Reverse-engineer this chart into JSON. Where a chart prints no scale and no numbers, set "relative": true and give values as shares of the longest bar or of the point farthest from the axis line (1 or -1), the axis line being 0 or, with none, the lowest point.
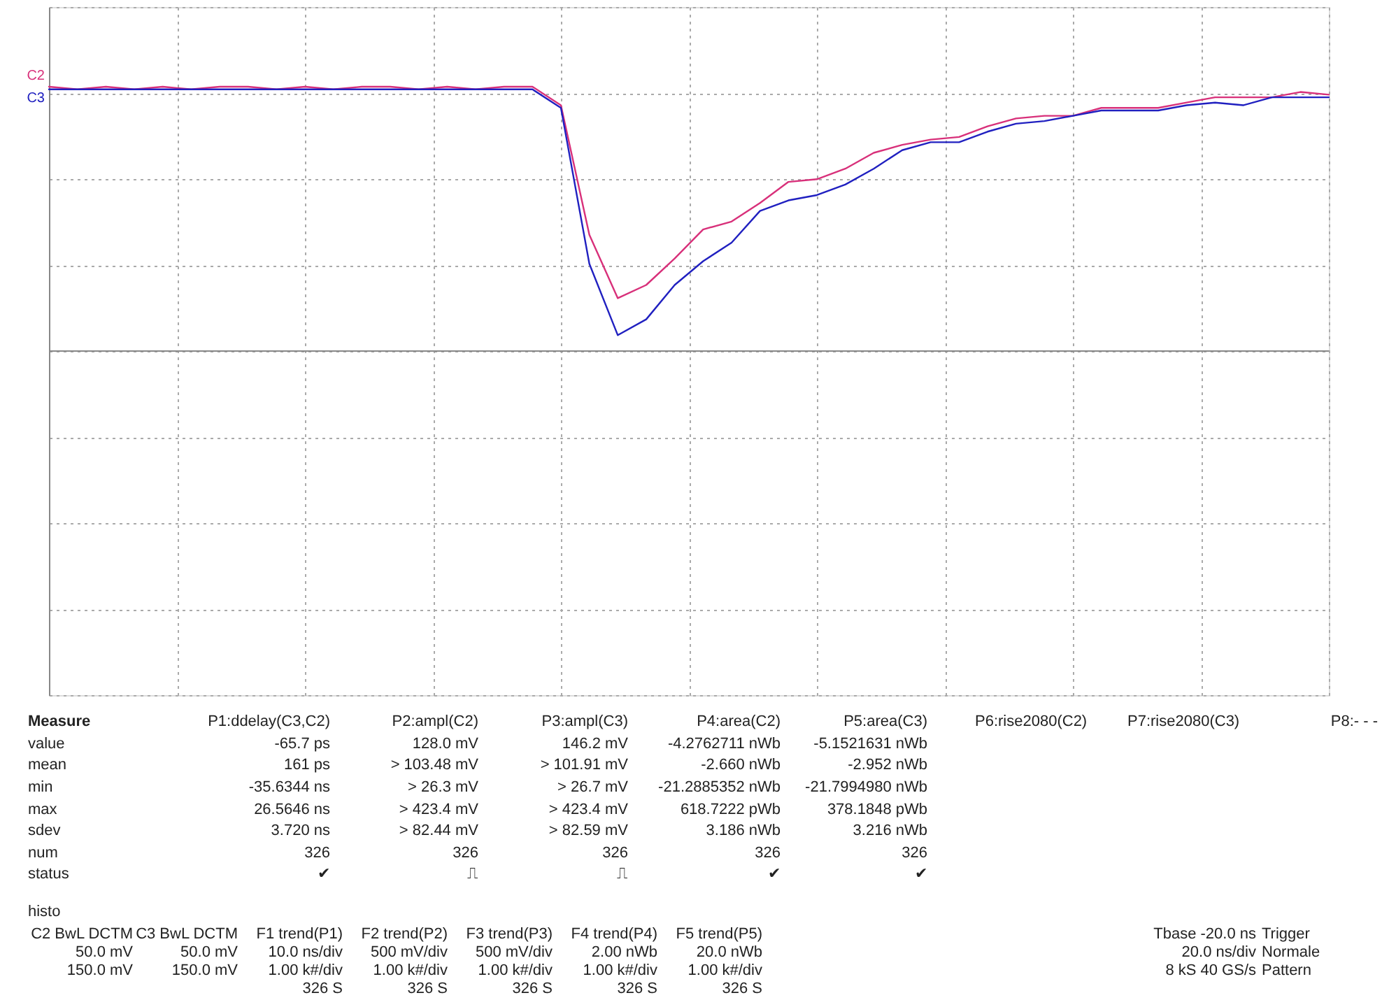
{
  "chart_data": {
    "type": "line",
    "relative": true,
    "grid": true,
    "tick_labels": false,
    "line_style": "solid",
    "marker": "none",
    "categories": [
      null,
      null,
      null,
      null,
      null,
      null,
      null,
      null,
      null,
      null,
      null,
      null,
      null,
      null,
      null,
      null,
      null,
      null,
      null,
      null,
      null,
      null,
      null,
      null,
      null,
      null,
      null,
      null,
      null,
      null,
      null,
      null,
      null,
      null,
      null,
      null,
      null,
      null,
      null,
      null,
      null,
      null,
      null,
      null,
      null,
      null
    ],
    "series": [
      {
        "name": "C2",
        "color": "#d8307a",
        "values": [
          1.0,
          0.99,
          1.0,
          0.99,
          1.0,
          0.99,
          1.0,
          1.0,
          0.99,
          1.0,
          0.99,
          1.0,
          1.0,
          0.99,
          1.0,
          0.99,
          1.0,
          1.0,
          0.93,
          0.44,
          0.2,
          0.25,
          0.35,
          0.46,
          0.49,
          0.56,
          0.64,
          0.65,
          0.69,
          0.75,
          0.78,
          0.8,
          0.81,
          0.85,
          0.88,
          0.89,
          0.89,
          0.92,
          0.92,
          0.92,
          0.94,
          0.96,
          0.96,
          0.96,
          0.98,
          0.97
        ]
      },
      {
        "name": "C3",
        "color": "#2020c0",
        "values": [
          0.99,
          0.99,
          0.99,
          0.99,
          0.99,
          0.99,
          0.99,
          0.99,
          0.99,
          0.99,
          0.99,
          0.99,
          0.99,
          0.99,
          0.99,
          0.99,
          0.99,
          0.99,
          0.92,
          0.33,
          0.06,
          0.12,
          0.25,
          0.34,
          0.41,
          0.53,
          0.57,
          0.59,
          0.63,
          0.69,
          0.76,
          0.79,
          0.79,
          0.83,
          0.86,
          0.87,
          0.89,
          0.91,
          0.91,
          0.91,
          0.93,
          0.94,
          0.93,
          0.96,
          0.96,
          0.96
        ]
      }
    ],
    "annotations": [
      "Measure",
      "P1:ddelay(C3,C2)",
      "P2:ampl(C2)",
      "P3:ampl(C3)",
      "P4:area(C2)",
      "P5:area(C3)",
      "P6:rise2080(C2)",
      "P7:rise2080(C3)",
      "P8:- - -",
      "value",
      "-65.7 ps",
      "128.0 mV",
      "146.2 mV",
      "-4.2762711 nWb",
      "-5.1521631 nWb",
      "mean",
      "161 ps",
      "> 103.48 mV",
      "> 101.91 mV",
      "-2.660 nWb",
      "-2.952 nWb",
      "min",
      "-35.6344 ns",
      "> 26.3 mV",
      "> 26.7 mV",
      "-21.2885352 nWb",
      "-21.7994980 nWb",
      "max",
      "26.5646 ns",
      "> 423.4 mV",
      "> 423.4 mV",
      "618.7222 pWb",
      "378.1848 pWb",
      "sdev",
      "3.720 ns",
      "> 82.44 mV",
      "> 82.59 mV",
      "3.186 nWb",
      "3.216 nWb",
      "num",
      "326",
      "326",
      "326",
      "326",
      "326",
      "status",
      "✔",
      "⎍",
      "⎍",
      "✔",
      "✔",
      "histo",
      "C2  BwL DCTM\n50.0 mV\n150.0 mV",
      "C3  BwL DCTM\n50.0 mV\n150.0 mV",
      "F1  trend(P1)\n10.0 ns/div\n1.00 k#/div\n326 S",
      "F2  trend(P2)\n500 mV/div\n1.00 k#/div\n326 S",
      "F3  trend(P3)\n500 mV/div\n1.00 k#/div\n326 S",
      "F4  trend(P4)\n2.00 nWb\n1.00 k#/div\n326 S",
      "F5  trend(P5)\n20.0 nWb\n1.00 k#/div\n326 S",
      "Tbase  -20.0 ns\n20.0 ns/div\n8 kS   40 GS/s",
      "Trigger\nNormale\nPattern"
    ]
  }
}
